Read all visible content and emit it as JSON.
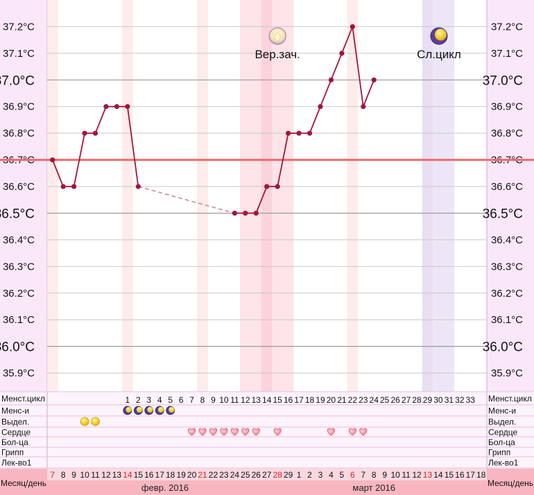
{
  "chart_data": {
    "type": "line",
    "ylim": [
      35.83,
      37.3
    ],
    "y_ticks": [
      "35.9°C",
      "36.0°C",
      "36.1°C",
      "36.2°C",
      "36.3°C",
      "36.4°C",
      "36.5°C",
      "36.6°C",
      "36.7°C",
      "36.8°C",
      "36.9°C",
      "37.0°C",
      "37.1°C",
      "37.2°C"
    ],
    "y_ticks_major": [
      "36.0°C",
      "36.5°C",
      "37.0°C"
    ],
    "coverline": 36.7,
    "line_color": "#a3143c",
    "coverline_color": "#f26b6b",
    "points": [
      {
        "day": 1,
        "temp": 36.7
      },
      {
        "day": 2,
        "temp": 36.6
      },
      {
        "day": 3,
        "temp": 36.6
      },
      {
        "day": 4,
        "temp": 36.8
      },
      {
        "day": 5,
        "temp": 36.8
      },
      {
        "day": 6,
        "temp": 36.9
      },
      {
        "day": 7,
        "temp": 36.9
      },
      {
        "day": 8,
        "temp": 36.9
      },
      {
        "day": 9,
        "temp": 36.6
      },
      {
        "day": 18,
        "temp": 36.5
      },
      {
        "day": 19,
        "temp": 36.5
      },
      {
        "day": 20,
        "temp": 36.5
      },
      {
        "day": 21,
        "temp": 36.6
      },
      {
        "day": 22,
        "temp": 36.6
      },
      {
        "day": 23,
        "temp": 36.8
      },
      {
        "day": 24,
        "temp": 36.8
      },
      {
        "day": 25,
        "temp": 36.8
      },
      {
        "day": 26,
        "temp": 36.9
      },
      {
        "day": 27,
        "temp": 37.0
      },
      {
        "day": 28,
        "temp": 37.1
      },
      {
        "day": 29,
        "temp": 37.2
      },
      {
        "day": 30,
        "temp": 36.9
      },
      {
        "day": 31,
        "temp": 37.0
      }
    ],
    "dashed_gap": [
      9,
      18
    ],
    "shaded_columns": [
      {
        "day": 1,
        "color": "#fdecea"
      },
      {
        "day": 8,
        "color": "#fdecea"
      },
      {
        "day": 15,
        "color": "#fdecea"
      },
      {
        "day": 19,
        "color": "#fde4e8"
      },
      {
        "day": 20,
        "color": "#fde4e8"
      },
      {
        "day": 21,
        "color": "#fbd3dc"
      },
      {
        "day": 22,
        "color": "#fde4e8"
      },
      {
        "day": 23,
        "color": "#fde4e8"
      },
      {
        "day": 29,
        "color": "#fdecea"
      },
      {
        "day": 36,
        "color": "#e8dff3"
      },
      {
        "day": 37,
        "color": "#ede6f7"
      },
      {
        "day": 38,
        "color": "#ede6f7"
      }
    ],
    "annotations": [
      {
        "label": "Вер.зач.",
        "day": 22,
        "icon": "ovulation-icon",
        "color": "#f3e0a8"
      },
      {
        "label": "Сл.цикл",
        "day": 37,
        "icon": "next-cycle-moon-icon",
        "color": "#f5d53a"
      }
    ],
    "rows": [
      {
        "label": "Менст.цикл",
        "right_label": "Менст.цикл"
      },
      {
        "label": "Менс-и",
        "right_label": "Менс-и"
      },
      {
        "label": "Выдел.",
        "right_label": "Выдел."
      },
      {
        "label": "Сердце",
        "right_label": "Сердце"
      },
      {
        "label": "Бол-ца",
        "right_label": "Бол-ца"
      },
      {
        "label": "Грипп",
        "right_label": "Грипп"
      },
      {
        "label": "Лек-во1",
        "right_label": "Лек-во1"
      }
    ],
    "cycle_days": [
      "1",
      "2",
      "3",
      "4",
      "5",
      "6",
      "7",
      "8",
      "9",
      "10",
      "11",
      "12",
      "13",
      "14",
      "15",
      "16",
      "17",
      "18",
      "19",
      "20",
      "21",
      "22",
      "23",
      "24",
      "25",
      "26",
      "27",
      "28",
      "29",
      "30",
      "31",
      "32",
      "33"
    ],
    "cycle_day_start": 8,
    "menses_days": [
      8,
      9,
      10,
      11,
      12
    ],
    "discharge_days": [
      4,
      5
    ],
    "heart_days": [
      14,
      15,
      16,
      17,
      18,
      19,
      20,
      22,
      27,
      29,
      30
    ],
    "dates": [
      "7",
      "8",
      "9",
      "10",
      "11",
      "12",
      "13",
      "14",
      "15",
      "16",
      "17",
      "18",
      "19",
      "20",
      "21",
      "22",
      "23",
      "24",
      "25",
      "26",
      "27",
      "28",
      "29",
      "1",
      "2",
      "3",
      "4",
      "5",
      "6",
      "7",
      "8",
      "9",
      "10",
      "11",
      "12",
      "13",
      "14",
      "15",
      "16",
      "17",
      "18"
    ],
    "red_date_days": [
      1,
      8,
      15,
      22,
      29,
      36
    ],
    "bottom_label": "Месяц/день",
    "months": [
      {
        "label": "февр. 2016",
        "day": 11.5
      },
      {
        "label": "март 2016",
        "day": 31
      }
    ]
  }
}
